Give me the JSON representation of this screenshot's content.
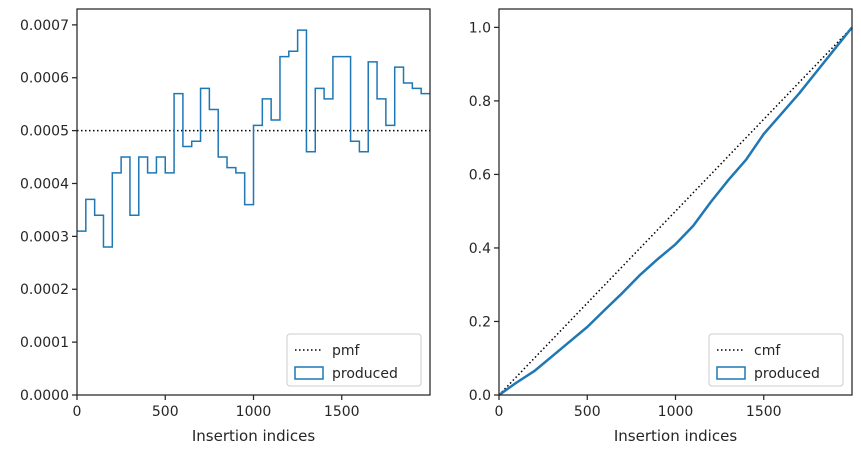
{
  "chart_data": [
    {
      "type": "step",
      "title": "",
      "xlabel": "Insertion indices",
      "ylabel": "",
      "xlim": [
        0,
        2000
      ],
      "ylim": [
        0,
        0.00073
      ],
      "xticks": [
        0,
        500,
        1000,
        1500
      ],
      "yticks": [
        0.0,
        0.0001,
        0.0002,
        0.0003,
        0.0004,
        0.0005,
        0.0006,
        0.0007
      ],
      "ytick_labels": [
        "0.0000",
        "0.0001",
        "0.0002",
        "0.0003",
        "0.0004",
        "0.0005",
        "0.0006",
        "0.0007"
      ],
      "grid": false,
      "legend_position": "lower-right",
      "series": [
        {
          "name": "pmf",
          "style": "dotted",
          "color": "#000000",
          "x": [
            0,
            2000
          ],
          "y": [
            0.0005,
            0.0005
          ]
        },
        {
          "name": "produced",
          "style": "step-histogram",
          "color": "#1f77b4",
          "bin_edges": [
            0,
            50,
            100,
            150,
            200,
            250,
            300,
            350,
            400,
            450,
            500,
            550,
            600,
            650,
            700,
            750,
            800,
            850,
            900,
            950,
            1000,
            1050,
            1100,
            1150,
            1200,
            1250,
            1300,
            1350,
            1400,
            1450,
            1500,
            1550,
            1600,
            1650,
            1700,
            1750,
            1800,
            1850,
            1900,
            1950,
            2000
          ],
          "values": [
            0.00031,
            0.00037,
            0.00034,
            0.00028,
            0.00042,
            0.00045,
            0.00034,
            0.00045,
            0.00042,
            0.00045,
            0.00042,
            0.00057,
            0.00047,
            0.00048,
            0.00058,
            0.00054,
            0.00045,
            0.00043,
            0.00042,
            0.00036,
            0.00051,
            0.00056,
            0.00052,
            0.00064,
            0.00065,
            0.00069,
            0.00046,
            0.00058,
            0.00056,
            0.00064,
            0.00064,
            0.00048,
            0.00046,
            0.00063,
            0.00056,
            0.00051,
            0.00062,
            0.00059,
            0.00058,
            0.00057
          ]
        }
      ]
    },
    {
      "type": "line",
      "title": "",
      "xlabel": "Insertion indices",
      "ylabel": "",
      "xlim": [
        0,
        2000
      ],
      "ylim": [
        0,
        1.05
      ],
      "xticks": [
        0,
        500,
        1000,
        1500
      ],
      "yticks": [
        0.0,
        0.2,
        0.4,
        0.6,
        0.8,
        1.0
      ],
      "ytick_labels": [
        "0.0",
        "0.2",
        "0.4",
        "0.6",
        "0.8",
        "1.0"
      ],
      "grid": false,
      "legend_position": "lower-right",
      "series": [
        {
          "name": "cmf",
          "style": "dotted",
          "color": "#000000",
          "x": [
            0,
            2000
          ],
          "y": [
            0,
            1.0
          ]
        },
        {
          "name": "produced",
          "style": "step-line",
          "color": "#1f77b4",
          "x": [
            0,
            100,
            200,
            300,
            400,
            500,
            600,
            700,
            800,
            900,
            1000,
            1100,
            1200,
            1300,
            1400,
            1500,
            1600,
            1700,
            1800,
            1900,
            2000
          ],
          "y": [
            0.0,
            0.034,
            0.065,
            0.105,
            0.145,
            0.185,
            0.232,
            0.278,
            0.327,
            0.37,
            0.41,
            0.46,
            0.525,
            0.585,
            0.64,
            0.71,
            0.765,
            0.82,
            0.88,
            0.94,
            1.0
          ]
        }
      ]
    }
  ]
}
